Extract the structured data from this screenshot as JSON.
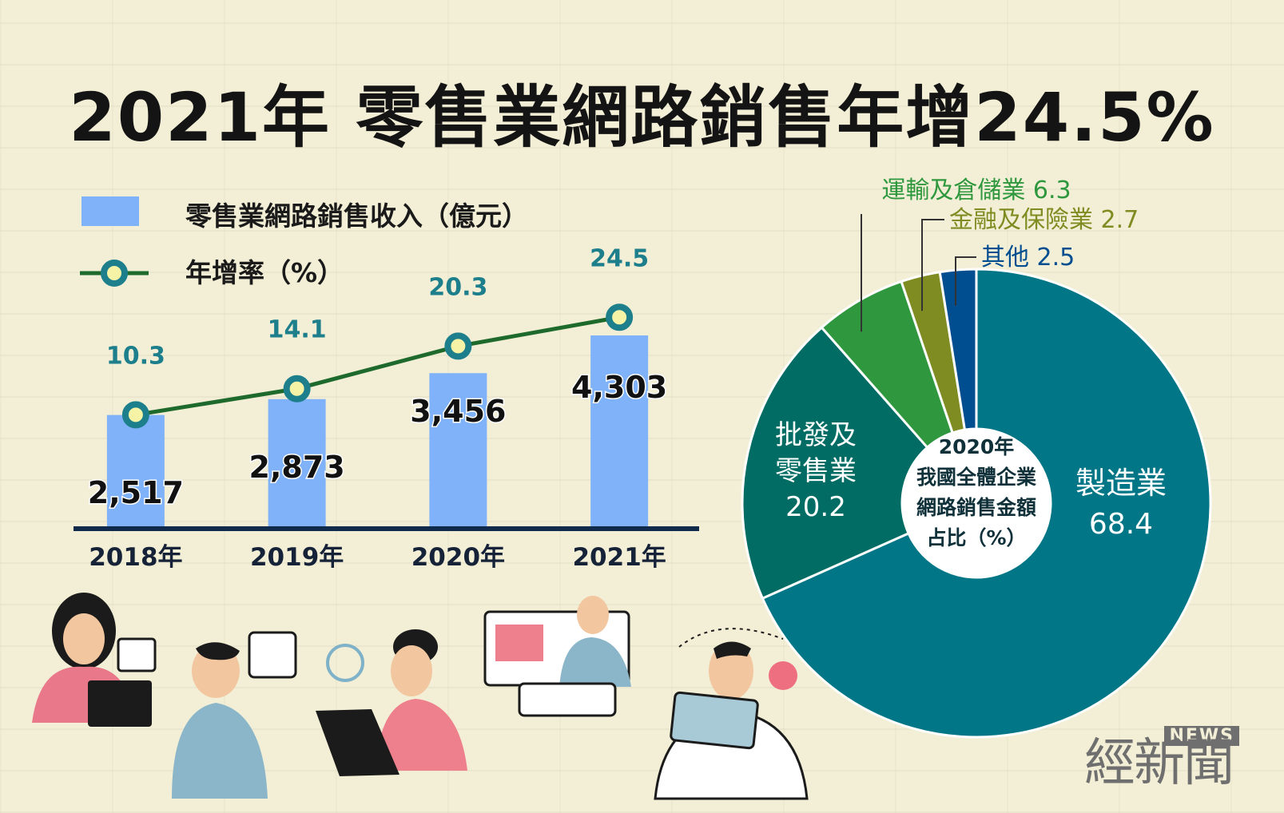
{
  "title": "2021年 零售業網路銷售年增24.5%",
  "colors": {
    "bar": "#7fb2f8",
    "line": "#1e6a2c",
    "marker_fill": "#f6f2a6",
    "marker_stroke": "#1d7f8c",
    "rate_label": "#1d7f8c",
    "axis": "#0f2a4a"
  },
  "chart_data": [
    {
      "type": "bar",
      "categories": [
        "2018年",
        "2019年",
        "2020年",
        "2021年"
      ],
      "series": [
        {
          "name": "零售業網路銷售收入（億元）",
          "type": "bar",
          "values": [
            2517,
            2873,
            3456,
            4303
          ],
          "labels": [
            "2,517",
            "2,873",
            "3,456",
            "4,303"
          ]
        },
        {
          "name": "年增率（%）",
          "type": "line",
          "values": [
            10.3,
            14.1,
            20.3,
            24.5
          ],
          "labels": [
            "10.3",
            "14.1",
            "20.3",
            "24.5"
          ]
        }
      ],
      "legend": [
        {
          "label": "零售業網路銷售收入（億元）",
          "kind": "bar"
        },
        {
          "label": "年增率（%）",
          "kind": "line"
        }
      ],
      "legend_position": "top-left",
      "grid": false
    },
    {
      "type": "pie",
      "center_title": [
        "2020年",
        "我國全體企業",
        "網路銷售金額",
        "占比（%）"
      ],
      "slices": [
        {
          "label": "製造業",
          "value": 68.4,
          "value_label": "68.4",
          "color": "#007686",
          "label_lines": [
            "製造業",
            "68.4"
          ]
        },
        {
          "label": "批發及零售業",
          "value": 20.2,
          "value_label": "20.2",
          "color": "#006c63",
          "label_lines": [
            "批發及",
            "零售業",
            "20.2"
          ]
        },
        {
          "label": "運輸及倉儲業",
          "value": 6.3,
          "value_label": "6.3",
          "color": "#2f983e",
          "callout": "運輸及倉儲業 6.3",
          "callout_color": "#2f983e"
        },
        {
          "label": "金融及保險業",
          "value": 2.7,
          "value_label": "2.7",
          "color": "#7f8c21",
          "callout": "金融及保險業 2.7",
          "callout_color": "#7f8c21"
        },
        {
          "label": "其他",
          "value": 2.5,
          "value_label": "2.5",
          "color": "#004d90",
          "callout": "其他 2.5",
          "callout_color": "#004d90"
        }
      ]
    }
  ],
  "watermark": {
    "en": "NEWS",
    "cn": "經新聞"
  }
}
